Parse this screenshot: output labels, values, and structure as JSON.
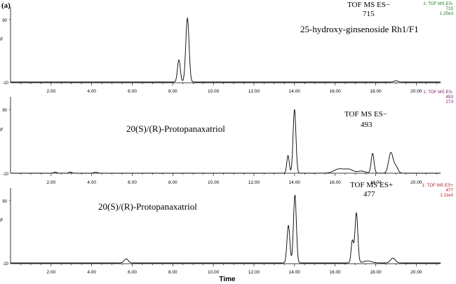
{
  "figure_label": "(a)",
  "x_axis_title": "Time",
  "colors": {
    "panel1_header": "#1a7a1a",
    "panel2_header": "#7a1a6a",
    "panel3_header": "#b01a1a",
    "trace": "#000000"
  },
  "chart_data": [
    {
      "type": "line",
      "title": "TOF MS ES−",
      "subtitle": "715",
      "annotation": "25-hydroxy-ginsenoside Rh1/F1",
      "header": {
        "line1": "1: TOF MS ES-",
        "line2": "715",
        "line3": "1.25e3"
      },
      "ylabel": "%",
      "yticks": [
        "90",
        "-10"
      ],
      "ylim": [
        -10,
        100
      ],
      "xlim": [
        0,
        21.2
      ],
      "xticks": [
        "2.00",
        "4.00",
        "6.00",
        "8.00",
        "10.00",
        "12.00",
        "14.00",
        "16.00",
        "18.00",
        "20.00"
      ],
      "baseline": 0,
      "peaks": [
        {
          "x": 8.3,
          "y": 32,
          "width": 0.07
        },
        {
          "x": 8.72,
          "y": 92,
          "width": 0.08
        },
        {
          "x": 19.0,
          "y": 2,
          "width": 0.09
        }
      ]
    },
    {
      "type": "line",
      "title": "TOF MS ES−",
      "subtitle": "493",
      "annotation": "20(S)/(R)-Protopanaxatriol",
      "header": {
        "line1": "1: TOF MS ES-",
        "line2": "493",
        "line3": "273"
      },
      "ylabel": "%",
      "yticks": [
        "90",
        "-10"
      ],
      "ylim": [
        -10,
        100
      ],
      "xlim": [
        0,
        21.2
      ],
      "xticks": [
        "2.00",
        "4.00",
        "6.00",
        "8.00",
        "10.00",
        "12.00",
        "14.00",
        "16.00",
        "18.00",
        "20.00"
      ],
      "baseline": 0,
      "peaks": [
        {
          "x": 2.2,
          "y": 1.5,
          "width": 0.08
        },
        {
          "x": 2.95,
          "y": 1.5,
          "width": 0.08
        },
        {
          "x": 4.2,
          "y": 1.2,
          "width": 0.1
        },
        {
          "x": 13.68,
          "y": 25,
          "width": 0.06
        },
        {
          "x": 14.0,
          "y": 90,
          "width": 0.07
        },
        {
          "x": 16.2,
          "y": 6,
          "width": 0.25
        },
        {
          "x": 16.7,
          "y": 5,
          "width": 0.2
        },
        {
          "x": 17.3,
          "y": 3,
          "width": 0.2
        },
        {
          "x": 17.85,
          "y": 28,
          "width": 0.07
        },
        {
          "x": 18.75,
          "y": 29,
          "width": 0.11
        },
        {
          "x": 19.0,
          "y": 9,
          "width": 0.1
        }
      ]
    },
    {
      "type": "line",
      "title": "TOF MS ES+",
      "subtitle": "477",
      "annotation": "20(S)/(R)-Protopanaxatriol",
      "header": {
        "line1": "1: TOF MS ES+",
        "line2": "477",
        "line3": "1.11e3"
      },
      "ylabel": "%",
      "yticks": [
        "90",
        "-10"
      ],
      "ylim": [
        -10,
        100
      ],
      "xlim": [
        0,
        21.2
      ],
      "xticks": [
        "2.00",
        "4.00",
        "6.00",
        "8.00",
        "10.00",
        "12.00",
        "14.00",
        "16.00",
        "18.00",
        "20.00"
      ],
      "baseline": 0,
      "peaks": [
        {
          "x": 5.7,
          "y": 6,
          "width": 0.1
        },
        {
          "x": 13.7,
          "y": 54,
          "width": 0.07
        },
        {
          "x": 14.02,
          "y": 98,
          "width": 0.07
        },
        {
          "x": 16.85,
          "y": 32,
          "width": 0.06
        },
        {
          "x": 17.05,
          "y": 72,
          "width": 0.07
        },
        {
          "x": 17.6,
          "y": 3,
          "width": 0.2
        },
        {
          "x": 18.85,
          "y": 7,
          "width": 0.12
        }
      ]
    }
  ]
}
